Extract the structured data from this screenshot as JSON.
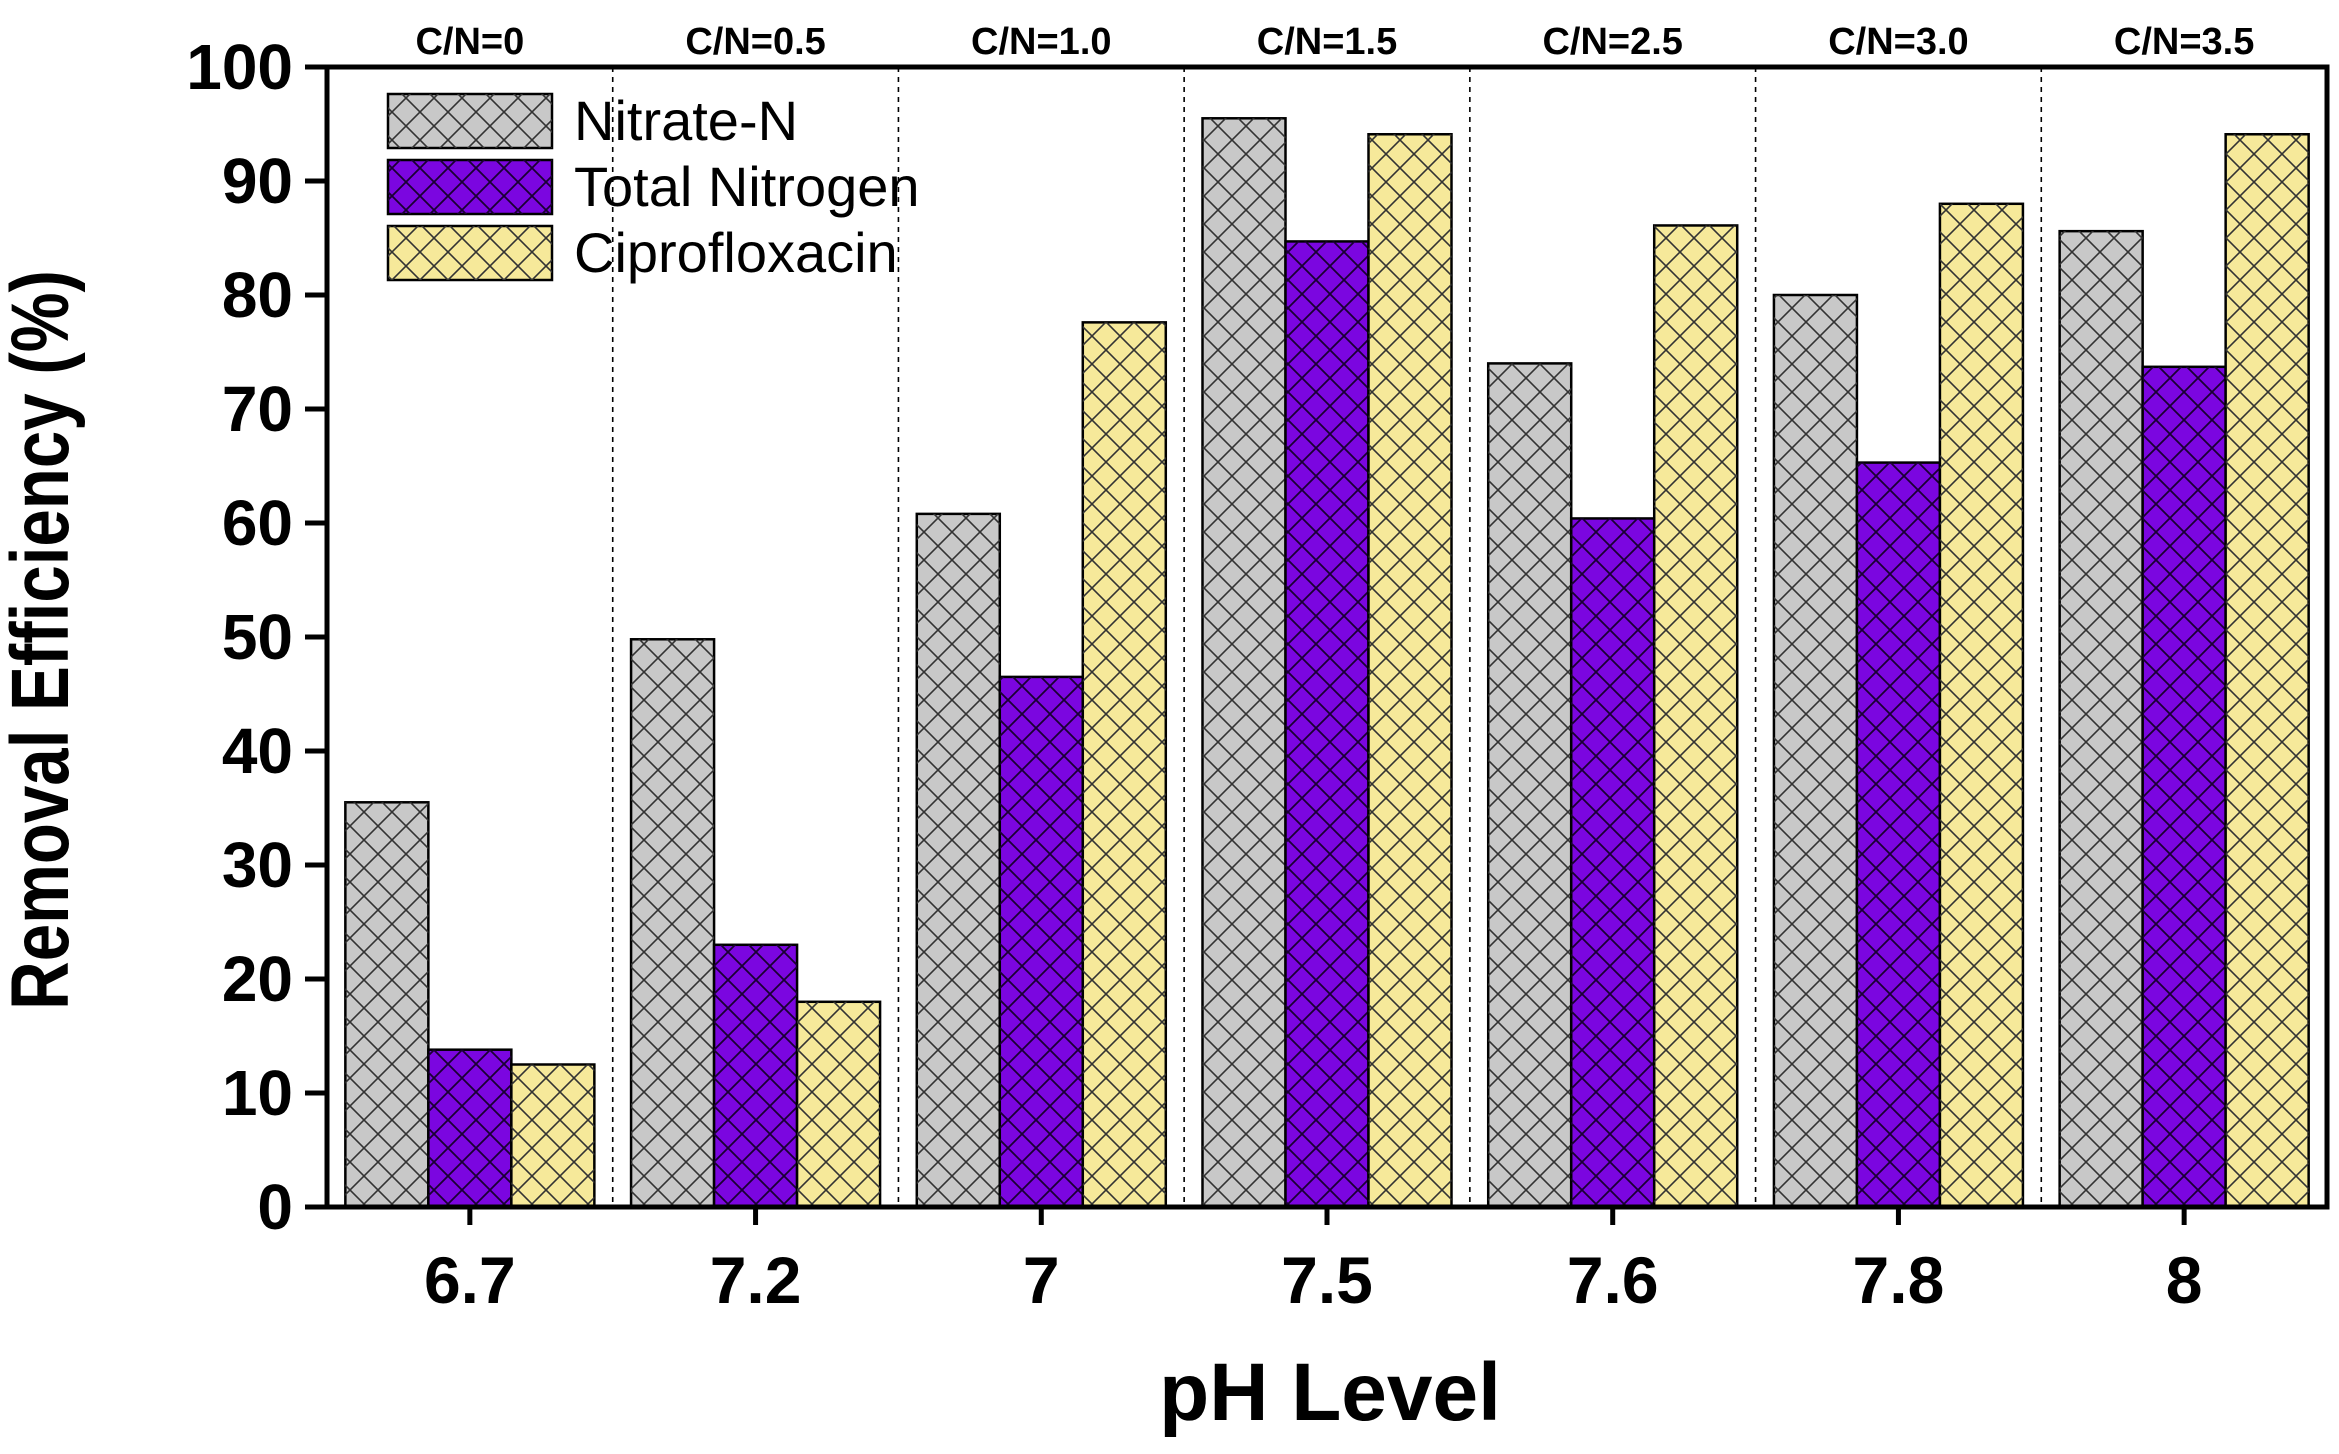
{
  "chart_data": {
    "type": "bar",
    "title": "",
    "xlabel": "pH Level",
    "ylabel": "Removal Efficiency (%)",
    "ylim": [
      0,
      100
    ],
    "yticks": [
      0,
      10,
      20,
      30,
      40,
      50,
      60,
      70,
      80,
      90,
      100
    ],
    "grid": false,
    "legend_position": "top-left",
    "categories": [
      "6.7",
      "7.2",
      "7",
      "7.5",
      "7.6",
      "7.8",
      "8"
    ],
    "group_labels": [
      "C/N=0",
      "C/N=0.5",
      "C/N=1.0",
      "C/N=1.5",
      "C/N=2.5",
      "C/N=3.0",
      "C/N=3.5"
    ],
    "series": [
      {
        "name": "Nitrate-N",
        "color": "#c8c8c8",
        "values": [
          35.5,
          49.8,
          60.8,
          95.5,
          74.0,
          80.0,
          85.6
        ]
      },
      {
        "name": "Total Nitrogen",
        "color": "#7b06e0",
        "values": [
          13.8,
          23.0,
          46.5,
          84.7,
          60.4,
          65.3,
          73.7
        ]
      },
      {
        "name": "Ciprofloxacin",
        "color": "#f6e99a",
        "values": [
          12.5,
          18.0,
          77.6,
          94.1,
          86.1,
          88.0,
          94.1
        ]
      }
    ]
  }
}
